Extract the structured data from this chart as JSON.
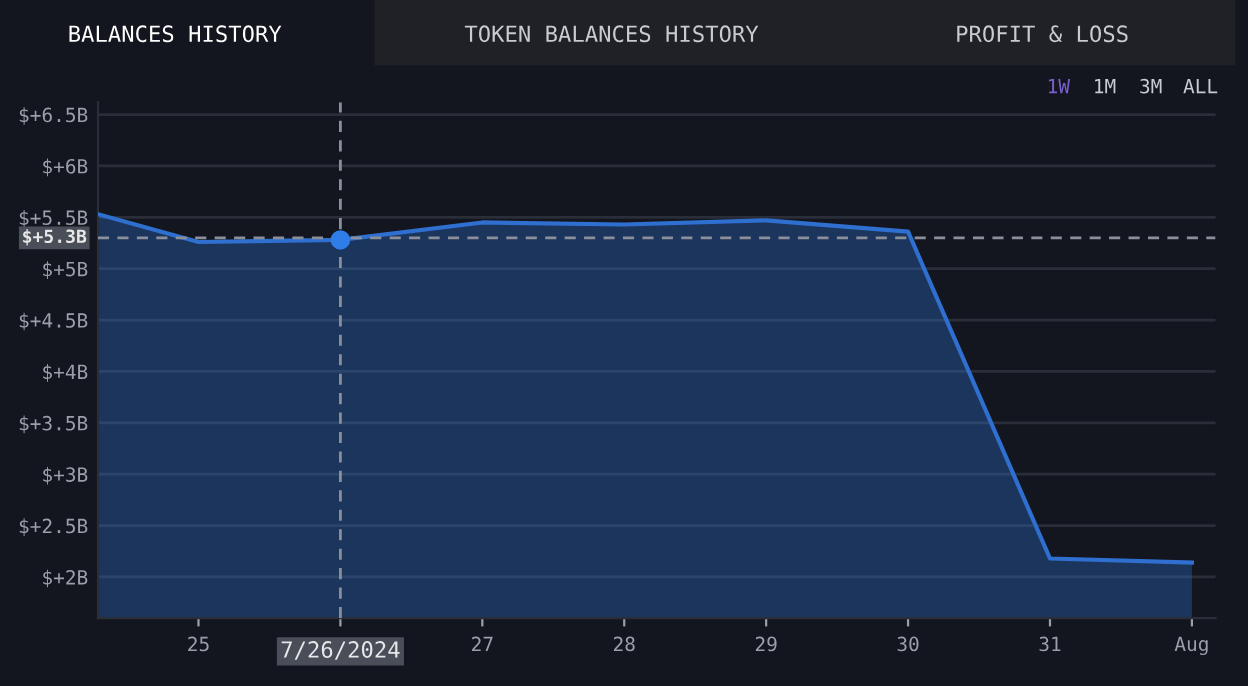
{
  "chart_data": {
    "type": "area",
    "annotations": [
      "BALANCES HISTORY",
      "TOKEN BALANCES HISTORY",
      "PROFIT & LOSS",
      "1W",
      "1M",
      "3M",
      "ALL"
    ],
    "series": [
      {
        "color": "#2f6fd0",
        "x": [
          "2024-07-24T07:00",
          "2024-07-25",
          "2024-07-26",
          "2024-07-27",
          "2024-07-28",
          "2024-07-29",
          "2024-07-30",
          "2024-07-31",
          "2024-08-01"
        ],
        "values": [
          5.53,
          5.26,
          5.28,
          5.45,
          5.43,
          5.47,
          5.36,
          2.18,
          2.14
        ]
      },
      {
        "type": "scatter",
        "color": "#2f7de8",
        "x": [
          "2024-07-26"
        ],
        "values": [
          5.28
        ],
        "marker": "circle"
      }
    ],
    "xlim": [
      "2024-07-24T07:00",
      "2024-08-01T04:00"
    ],
    "xticks": [
      {
        "value": "2024-07-25",
        "label": "25"
      },
      {
        "value": "2024-07-26",
        "label": null
      },
      {
        "value": "2024-07-27",
        "label": "27"
      },
      {
        "value": "2024-07-28",
        "label": "28"
      },
      {
        "value": "2024-07-29",
        "label": "29"
      },
      {
        "value": "2024-07-30",
        "label": "30"
      },
      {
        "value": "2024-07-31",
        "label": "31"
      },
      {
        "value": "2024-08-01",
        "label": "Aug"
      }
    ],
    "ylim": [
      1.6,
      6.62
    ],
    "yticks": [
      {
        "value": 2,
        "label": "$+2B"
      },
      {
        "value": 2.5,
        "label": "$+2.5B"
      },
      {
        "value": 3,
        "label": "$+3B"
      },
      {
        "value": 3.5,
        "label": "$+3.5B"
      },
      {
        "value": 4,
        "label": "$+4B"
      },
      {
        "value": 4.5,
        "label": "$+4.5B"
      },
      {
        "value": 5,
        "label": "$+5B"
      },
      {
        "value": 5.5,
        "label": "$+5.5B"
      },
      {
        "value": 6,
        "label": "$+6B"
      },
      {
        "value": 6.5,
        "label": "$+6.5B"
      }
    ],
    "ref_lines": [
      {
        "axis": "x",
        "value": "2024-07-26",
        "label": "7/26/2024",
        "color": "#8a8f99",
        "line_style": "dashed"
      },
      {
        "axis": "y",
        "value": 5.3,
        "label": "$+5.3B",
        "color": "#8a8f99",
        "line_style": "dashed"
      }
    ],
    "grid": "y",
    "legend": false
  }
}
